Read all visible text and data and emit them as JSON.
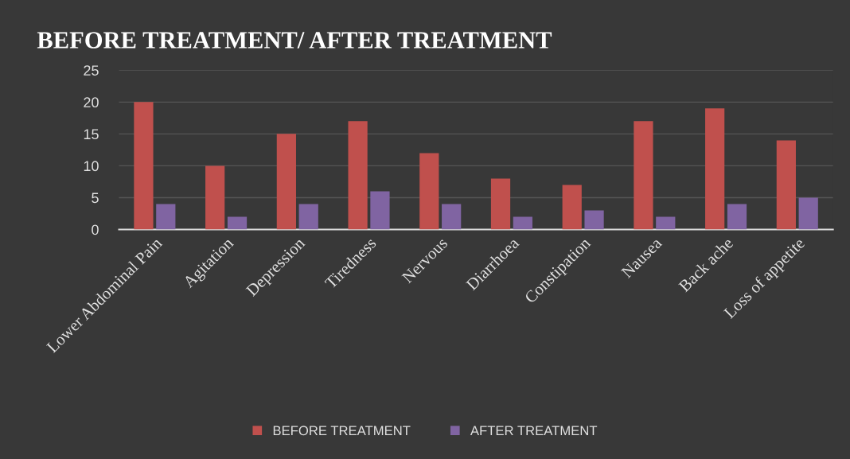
{
  "chart_data": {
    "type": "bar",
    "title": "BEFORE TREATMENT/ AFTER TREATMENT",
    "categories": [
      "Lower Abdominal Pain",
      "Agitation",
      "Depression",
      "Tiredness",
      "Nervous",
      "Diarrhoea",
      "Constipation",
      "Nausea",
      "Back ache",
      "Loss of appetite"
    ],
    "series": [
      {
        "name": "BEFORE TREATMENT",
        "color": "#c0504d",
        "values": [
          20,
          10,
          15,
          17,
          12,
          8,
          7,
          17,
          19,
          14
        ]
      },
      {
        "name": "AFTER TREATMENT",
        "color": "#8064a2",
        "values": [
          4,
          2,
          4,
          6,
          4,
          2,
          3,
          2,
          4,
          5
        ]
      }
    ],
    "ylim": [
      0,
      25
    ],
    "yticks": [
      0,
      5,
      10,
      15,
      20,
      25
    ],
    "grid": "y",
    "legend": "bottom"
  }
}
